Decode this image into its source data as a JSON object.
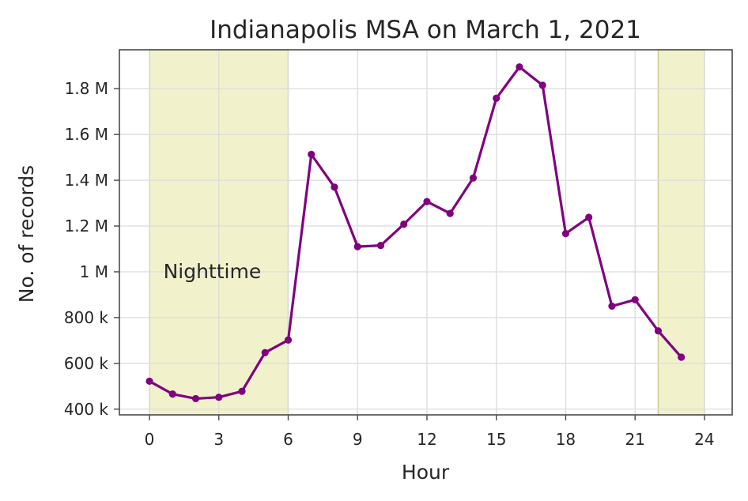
{
  "chart_data": {
    "type": "line",
    "title": "Indianapolis MSA on March 1, 2021",
    "xlabel": "Hour",
    "ylabel": "No. of records",
    "xlim": [
      -1.3,
      25.2
    ],
    "ylim": [
      375000,
      1970000
    ],
    "xticks": [
      0,
      3,
      6,
      9,
      12,
      15,
      18,
      21,
      24
    ],
    "xtick_labels": [
      "0",
      "3",
      "6",
      "9",
      "12",
      "15",
      "18",
      "21",
      "24"
    ],
    "yticks": [
      400000,
      600000,
      800000,
      1000000,
      1200000,
      1400000,
      1600000,
      1800000
    ],
    "ytick_labels": [
      "400 k",
      "600 k",
      "800 k",
      "1 M",
      "1.2 M",
      "1.4 M",
      "1.6 M",
      "1.8 M"
    ],
    "grid": true,
    "line_color": "#800080",
    "band_color": "#ecedb9",
    "series": [
      {
        "x": [
          0,
          1,
          2,
          3,
          4,
          5,
          6,
          7,
          8,
          9,
          10,
          11,
          12,
          13,
          14,
          15,
          16,
          17,
          18,
          19,
          20,
          21,
          22,
          23
        ],
        "values": [
          522000,
          466000,
          446000,
          452000,
          478000,
          647000,
          702000,
          1513000,
          1370000,
          1110000,
          1115000,
          1208000,
          1307000,
          1255000,
          1410000,
          1758000,
          1895000,
          1815000,
          1167000,
          1238000,
          850000,
          878000,
          742000,
          627000
        ]
      }
    ],
    "shaded_regions": [
      {
        "x_start": 0,
        "x_end": 6
      },
      {
        "x_start": 22,
        "x_end": 24
      }
    ],
    "annotations": [
      {
        "text": "Nighttime",
        "x": 0.6,
        "y": 1000000
      }
    ]
  }
}
